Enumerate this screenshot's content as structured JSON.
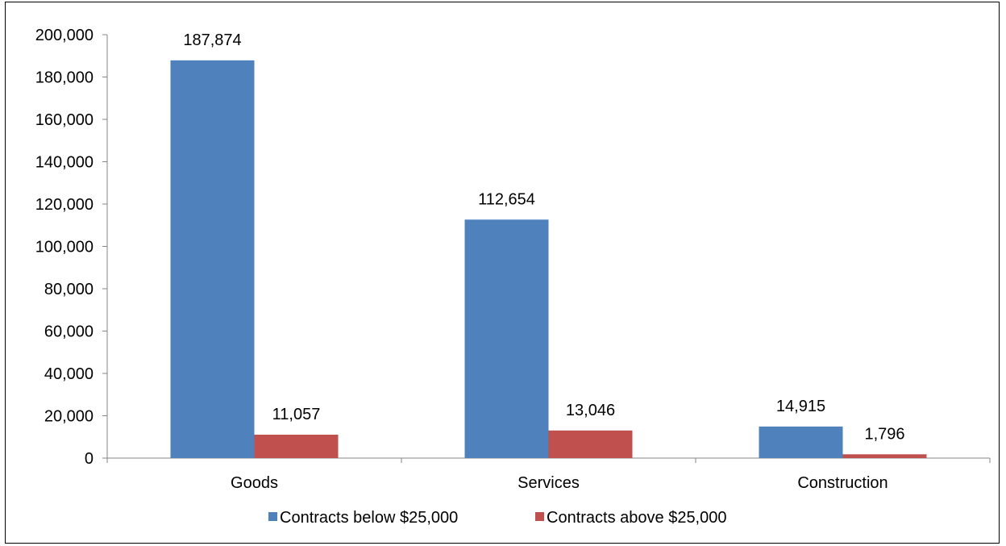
{
  "chart_data": {
    "type": "bar",
    "categories": [
      "Goods",
      "Services",
      "Construction"
    ],
    "series": [
      {
        "name": "Contracts below $25,000",
        "values": [
          187874,
          112654,
          14915
        ],
        "color": "#4f81bd"
      },
      {
        "name": "Contracts above $25,000",
        "values": [
          11057,
          13046,
          1796
        ],
        "color": "#c0504d"
      }
    ],
    "data_labels": [
      [
        "187,874",
        "112,654",
        "14,915"
      ],
      [
        "11,057",
        "13,046",
        "1,796"
      ]
    ],
    "ylim": [
      0,
      200000
    ],
    "yticks": [
      0,
      20000,
      40000,
      60000,
      80000,
      100000,
      120000,
      140000,
      160000,
      180000,
      200000
    ],
    "ytick_labels": [
      "0",
      "20,000",
      "40,000",
      "60,000",
      "80,000",
      "100,000",
      "120,000",
      "140,000",
      "160,000",
      "180,000",
      "200,000"
    ],
    "grid": false,
    "legend_position": "bottom",
    "title": "",
    "xlabel": "",
    "ylabel": ""
  }
}
